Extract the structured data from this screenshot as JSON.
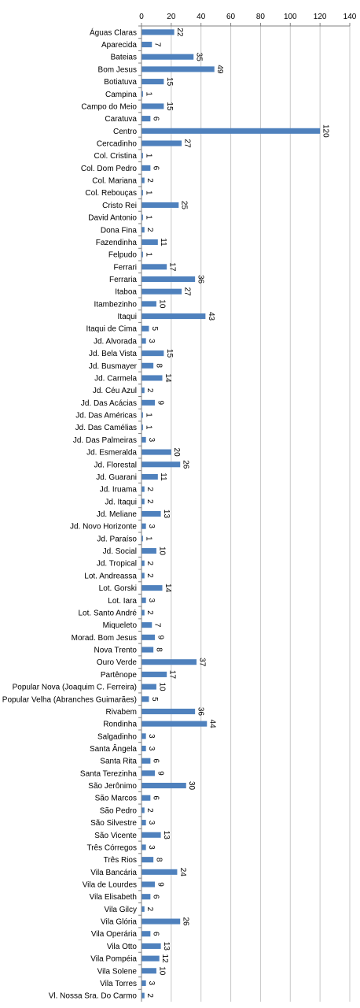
{
  "chart_data": {
    "type": "bar",
    "orientation": "horizontal",
    "title": "",
    "xlabel": "",
    "ylabel": "",
    "xlim": [
      0,
      140
    ],
    "x_ticks": [
      "0",
      "20",
      "40",
      "60",
      "80",
      "100",
      "120",
      "140"
    ],
    "x_axis_position": "top",
    "grid": true,
    "legend": "none",
    "bar_color": "#4F81BD",
    "grid_color": "#C8C8C8",
    "categories": [
      "Águas Claras",
      "Aparecida",
      "Bateias",
      "Bom Jesus",
      "Botiatuva",
      "Campina",
      "Campo do Meio",
      "Caratuva",
      "Centro",
      "Cercadinho",
      "Col. Cristina",
      "Col. Dom Pedro",
      "Col. Mariana",
      "Col. Rebouças",
      "Cristo Rei",
      "David Antonio",
      "Dona Fina",
      "Fazendinha",
      "Felpudo",
      "Ferrari",
      "Ferraria",
      "Itaboa",
      "Itambezinho",
      "Itaqui",
      "Itaqui de Cima",
      "Jd. Alvorada",
      "Jd. Bela Vista",
      "Jd. Busmayer",
      "Jd. Carmela",
      "Jd. Céu Azul",
      "Jd. Das Acácias",
      "Jd. Das Américas",
      "Jd. Das Camélias",
      "Jd. Das Palmeiras",
      "Jd. Esmeralda",
      "Jd. Florestal",
      "Jd. Guarani",
      "Jd. Iruama",
      "Jd. Itaqui",
      "Jd. Meliane",
      "Jd. Novo Horizonte",
      "Jd. Paraíso",
      "Jd. Social",
      "Jd. Tropical",
      "Lot. Andreassa",
      "Lot. Gorski",
      "Lot. Iara",
      "Lot. Santo André",
      "Miqueleto",
      "Morad. Bom Jesus",
      "Nova Trento",
      "Ouro Verde",
      "Partênope",
      "Popular Nova (Joaquim C. Ferreira)",
      "Popular Velha (Abranches Guimarães)",
      "Rivabem",
      "Rondinha",
      "Salgadinho",
      "Santa Ângela",
      "Santa Rita",
      "Santa Terezinha",
      "São Jerônimo",
      "São Marcos",
      "São Pedro",
      "São Silvestre",
      "São Vicente",
      "Três Córregos",
      "Três Rios",
      "Vila Bancária",
      "Vila de Lourdes",
      "Vila Elisabeth",
      "Vila Gilcy",
      "Vila Glória",
      "Vila Operária",
      "Vila Otto",
      "Vila Pompéia",
      "Vila Solene",
      "Vila Torres",
      "Vl. Nossa Sra. Do Carmo"
    ],
    "values": [
      22,
      7,
      35,
      49,
      15,
      1,
      15,
      6,
      120,
      27,
      1,
      6,
      2,
      1,
      25,
      1,
      2,
      11,
      1,
      17,
      36,
      27,
      10,
      43,
      5,
      3,
      15,
      8,
      14,
      2,
      9,
      1,
      1,
      3,
      20,
      26,
      11,
      2,
      2,
      13,
      3,
      1,
      10,
      2,
      2,
      14,
      3,
      2,
      7,
      9,
      8,
      37,
      17,
      10,
      5,
      36,
      44,
      3,
      3,
      6,
      9,
      30,
      6,
      2,
      3,
      13,
      3,
      8,
      24,
      9,
      6,
      2,
      26,
      6,
      13,
      12,
      10,
      3,
      2
    ],
    "value_labels": [
      "22",
      "7",
      "35",
      "49",
      "15",
      "1",
      "15",
      "6",
      "120",
      "27",
      "1",
      "6",
      "2",
      "1",
      "25",
      "1",
      "2",
      "11",
      "1",
      "17",
      "36",
      "27",
      "10",
      "43",
      "5",
      "3",
      "15",
      "8",
      "14",
      "2",
      "9",
      "1",
      "1",
      "3",
      "20",
      "26",
      "11",
      "2",
      "2",
      "13",
      "3",
      "1",
      "10",
      "2",
      "2",
      "14",
      "3",
      "2",
      "7",
      "9",
      "8",
      "37",
      "17",
      "10",
      "5",
      "36",
      "44",
      "3",
      "3",
      "6",
      "9",
      "30",
      "6",
      "2",
      "3",
      "13",
      "3",
      "8",
      "24",
      "9",
      "6",
      "2",
      "26",
      "6",
      "13",
      "12",
      "10",
      "3",
      "2"
    ]
  }
}
